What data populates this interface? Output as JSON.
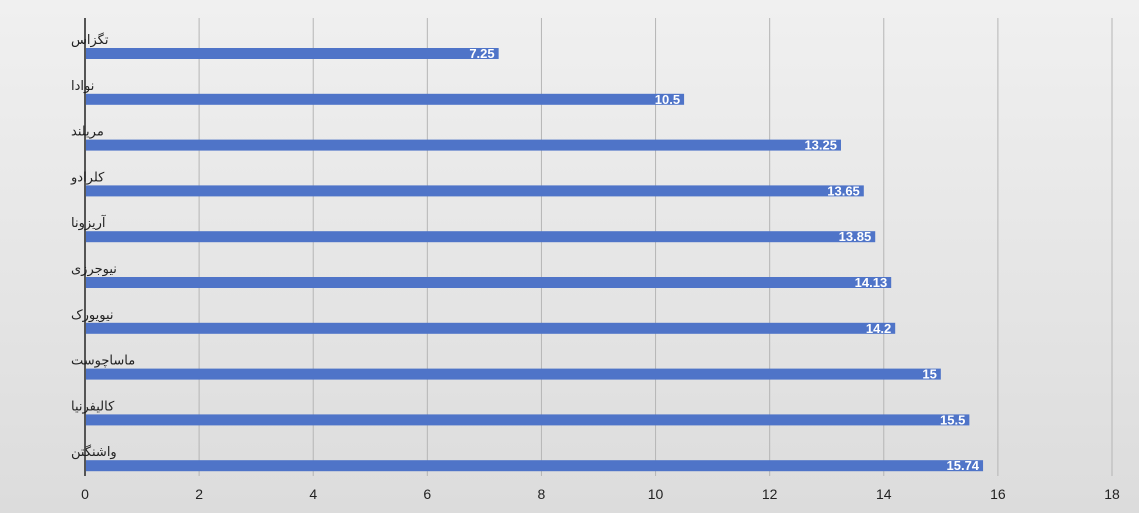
{
  "chart_data": {
    "type": "bar",
    "orientation": "horizontal",
    "title": "",
    "xlabel": "",
    "ylabel": "",
    "categories": [
      "تگزاس",
      "نوادا",
      "مریلند",
      "کلرادو",
      "آریزونا",
      "نیوجرزی",
      "نیویورک",
      "ماساچوست",
      "کالیفرنیا",
      "واشنگتن"
    ],
    "values": [
      7.25,
      10.5,
      13.25,
      13.65,
      13.85,
      14.13,
      14.2,
      15,
      15.5,
      15.74
    ],
    "value_labels": [
      "7.25",
      "10.5",
      "13.25",
      "13.65",
      "13.85",
      "14.13",
      "14.2",
      "15",
      "15.5",
      "15.74"
    ],
    "xlim": [
      0,
      18
    ],
    "x_ticks": [
      "0",
      "2",
      "4",
      "6",
      "8",
      "10",
      "12",
      "14",
      "16",
      "18"
    ],
    "grid": true,
    "legend": "none",
    "bar_color": "#4f74c8",
    "grid_color": "#b5b5b5",
    "axis_color": "#555555",
    "data_label_color": "#ffffff"
  }
}
